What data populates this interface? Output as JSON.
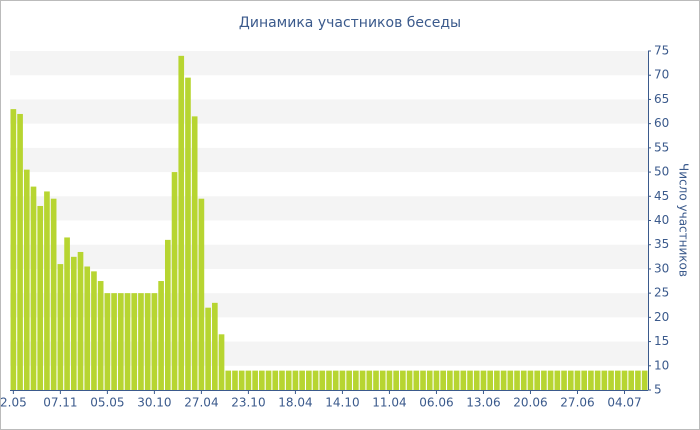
{
  "chart_data": {
    "type": "bar",
    "title": "Динамика участников беседы",
    "y_axis_label": "Число участников",
    "categories": [
      "2.05",
      null,
      null,
      null,
      null,
      null,
      null,
      "07.11",
      null,
      null,
      null,
      null,
      null,
      null,
      "05.05",
      null,
      null,
      null,
      null,
      null,
      null,
      "30.10",
      null,
      null,
      null,
      null,
      null,
      null,
      "27.04",
      null,
      null,
      null,
      null,
      null,
      null,
      "23.10",
      null,
      null,
      null,
      null,
      null,
      null,
      "18.04",
      null,
      null,
      null,
      null,
      null,
      null,
      "14.10",
      null,
      null,
      null,
      null,
      null,
      null,
      "11.04",
      null,
      null,
      null,
      null,
      null,
      null,
      "06.06",
      null,
      null,
      null,
      null,
      null,
      null,
      "13.06",
      null,
      null,
      null,
      null,
      null,
      null,
      "20.06",
      null,
      null,
      null,
      null,
      null,
      null,
      "27.06",
      null,
      null,
      null,
      null,
      null,
      null,
      "04.07",
      null,
      null,
      null
    ],
    "values": [
      63,
      62,
      50.5,
      47,
      43,
      46,
      44.5,
      31,
      36.5,
      32.5,
      33.5,
      30.5,
      29.5,
      27.5,
      25,
      25,
      25,
      25,
      25,
      25,
      25,
      25,
      27.5,
      36,
      50,
      74,
      69.5,
      61.5,
      44.5,
      22,
      23,
      16.5,
      9,
      9,
      9,
      9,
      9,
      9,
      9,
      9,
      9,
      9,
      9,
      9,
      9,
      9,
      9,
      9,
      9,
      9,
      9,
      9,
      9,
      9,
      9,
      9,
      9,
      9,
      9,
      9,
      9,
      9,
      9,
      9,
      9,
      9,
      9,
      9,
      9,
      9,
      9,
      9,
      9,
      9,
      9,
      9,
      9,
      9,
      9,
      9,
      9,
      9,
      9,
      9,
      9,
      9,
      9,
      9,
      9,
      9,
      9,
      9,
      9,
      9,
      9
    ],
    "color": "#b7d531",
    "ylim": [
      5,
      75
    ],
    "yticks": [
      5,
      10,
      15,
      20,
      25,
      30,
      35,
      40,
      45,
      50,
      55,
      60,
      65,
      70,
      75
    ],
    "y_axis_side": "right",
    "grid": true
  }
}
